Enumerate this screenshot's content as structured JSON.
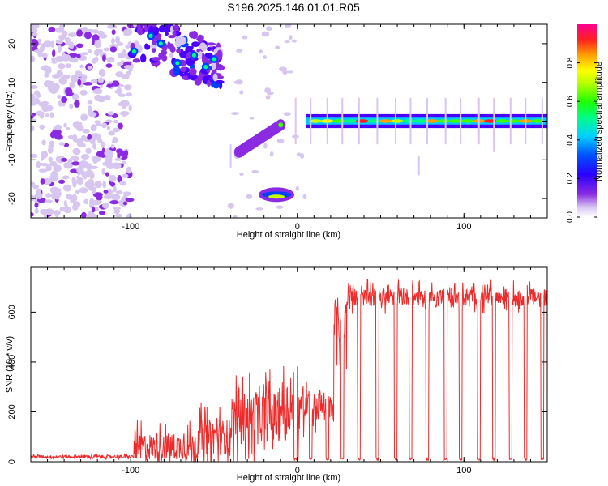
{
  "title": "S196.2025.146.01.01.R05",
  "chart_data": [
    {
      "type": "heatmap",
      "xlabel": "Height of straight line (km)",
      "ylabel": "Frequency (Hz)",
      "xlim": [
        -160,
        150
      ],
      "ylim": [
        -25,
        25
      ],
      "xticks": [
        -100,
        0,
        100
      ],
      "yticks": [
        -20,
        -10,
        0,
        10,
        20
      ],
      "colorbar": {
        "label": "Normalized spectral amplitude",
        "range": [
          0,
          1
        ],
        "ticks": [
          "0.0",
          "0.2",
          "0.4",
          "0.6",
          "0.8"
        ],
        "colormap": [
          "#ffffff",
          "#d6c6f0",
          "#8a2be2",
          "#4b00ff",
          "#0040ff",
          "#00c8ff",
          "#00ff80",
          "#40ff00",
          "#c8ff00",
          "#ffff00",
          "#ffa000",
          "#ff2020",
          "#ff00a0"
        ]
      },
      "features": [
        {
          "label": "dominant tone",
          "x_range": [
            5,
            150
          ],
          "frequency": 0,
          "amplitude": 0.9
        },
        {
          "label": "offset tone",
          "x_range": [
            -20,
            -5
          ],
          "frequency": -19,
          "amplitude": 0.7
        },
        {
          "label": "drifting tone",
          "x_range": [
            -35,
            -10
          ],
          "frequency_start": -8,
          "frequency_end": -1,
          "amplitude": 0.6
        },
        {
          "label": "upper cluster",
          "x_range": [
            -100,
            -45
          ],
          "frequency": 18,
          "amplitude": 0.5
        },
        {
          "label": "noise floor",
          "x_range": [
            -160,
            -100
          ],
          "frequency_range": [
            -25,
            25
          ],
          "amplitude": 0.15
        }
      ]
    },
    {
      "type": "line",
      "xlabel": "Height of straight line (km)",
      "ylabel": "SNR (10 * v/v)",
      "xlim": [
        -160,
        150
      ],
      "ylim": [
        0,
        780
      ],
      "xticks": [
        -100,
        0,
        100
      ],
      "yticks": [
        0,
        200,
        400,
        600
      ],
      "color": "#ee2a2a",
      "segments": [
        {
          "x_range": [
            -160,
            -98
          ],
          "mean": 20,
          "spread": 12
        },
        {
          "x_range": [
            -98,
            -60
          ],
          "mean": 60,
          "spread": 110
        },
        {
          "x_range": [
            -60,
            -40
          ],
          "mean": 100,
          "spread": 140
        },
        {
          "x_range": [
            -40,
            -10
          ],
          "mean": 180,
          "spread": 200
        },
        {
          "x_range": [
            -10,
            5
          ],
          "mean": 220,
          "spread": 220
        },
        {
          "x_range": [
            5,
            22
          ],
          "mean": 220,
          "spread": 120
        },
        {
          "x_range": [
            22,
            30
          ],
          "mean": 560,
          "spread": 200
        },
        {
          "x_range": [
            30,
            150
          ],
          "mean": 660,
          "spread": 70
        }
      ],
      "dropouts": [
        -1,
        8,
        18,
        27,
        37,
        48,
        59,
        68,
        78,
        89,
        98,
        109,
        118,
        128,
        137,
        147
      ]
    }
  ]
}
